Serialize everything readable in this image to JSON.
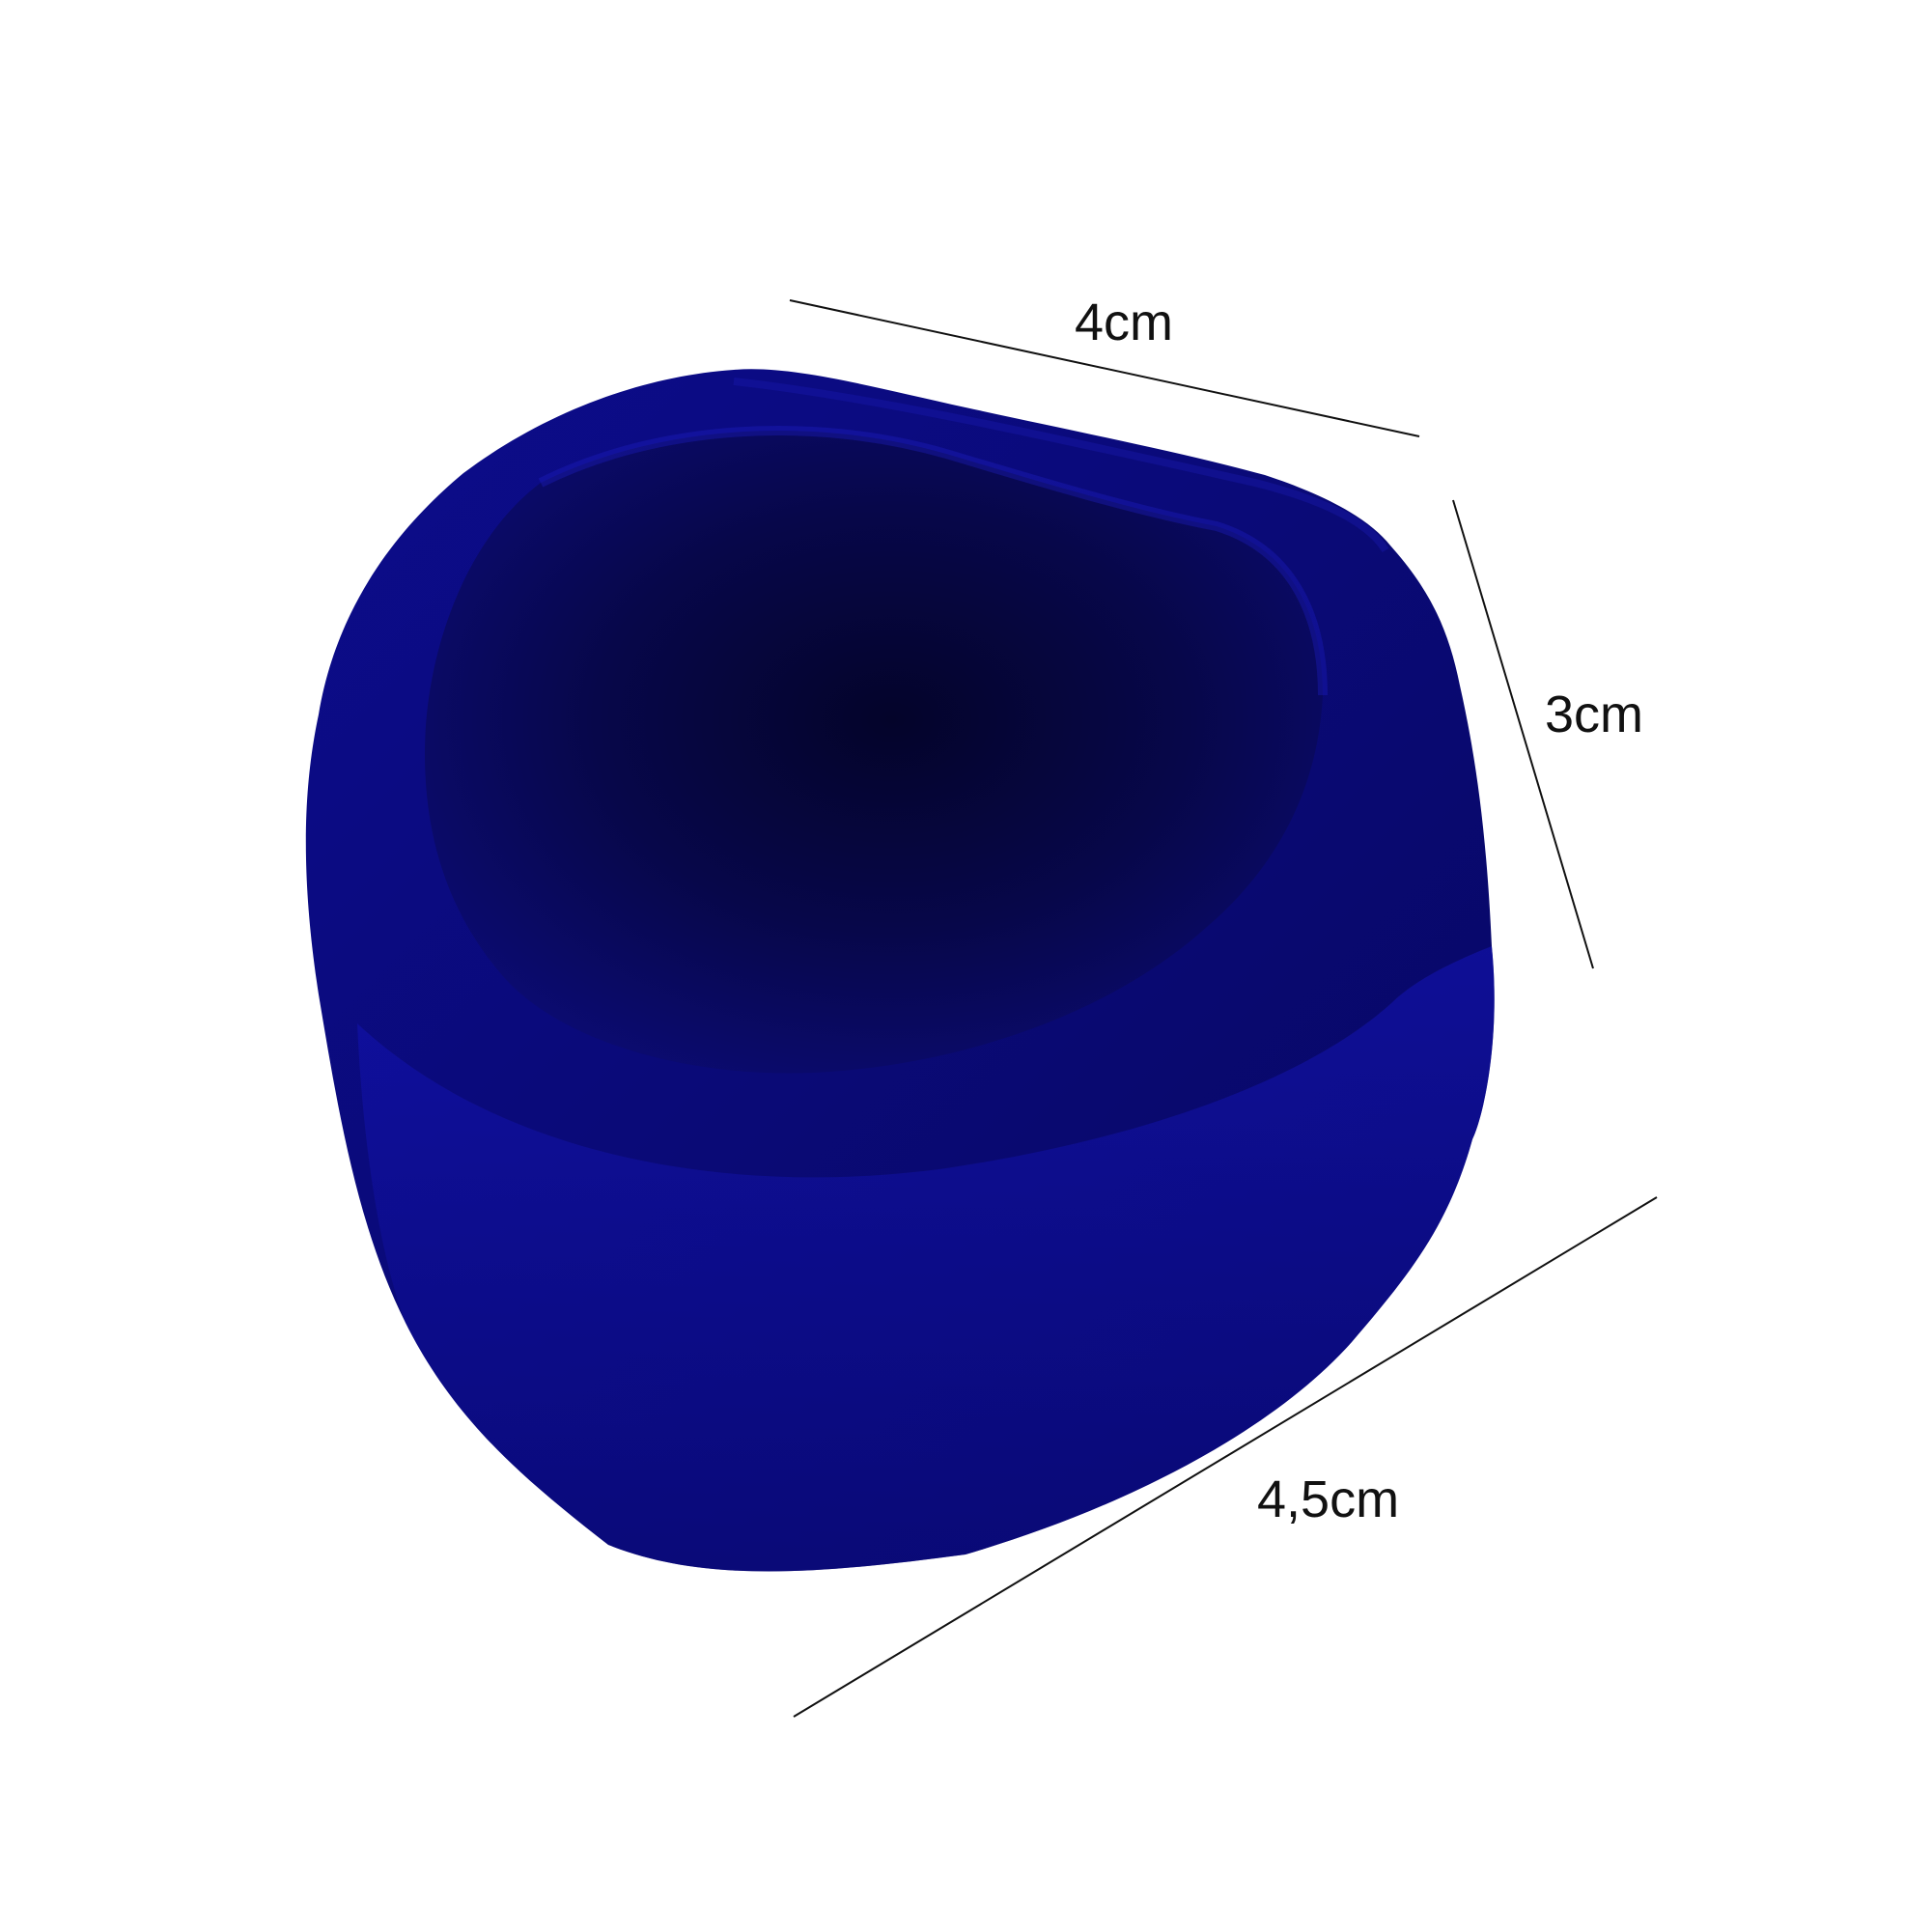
{
  "dimensions": {
    "top_width": "4cm",
    "side_height": "3cm",
    "bottom_length": "4,5cm"
  },
  "colors": {
    "background": "#ffffff",
    "velvet_base": "#0a0a8a",
    "velvet_dark": "#050540",
    "velvet_highlight": "#1a1ad0",
    "line": "#111111"
  },
  "icons": {
    "product": "velvet-ring-box-icon"
  }
}
